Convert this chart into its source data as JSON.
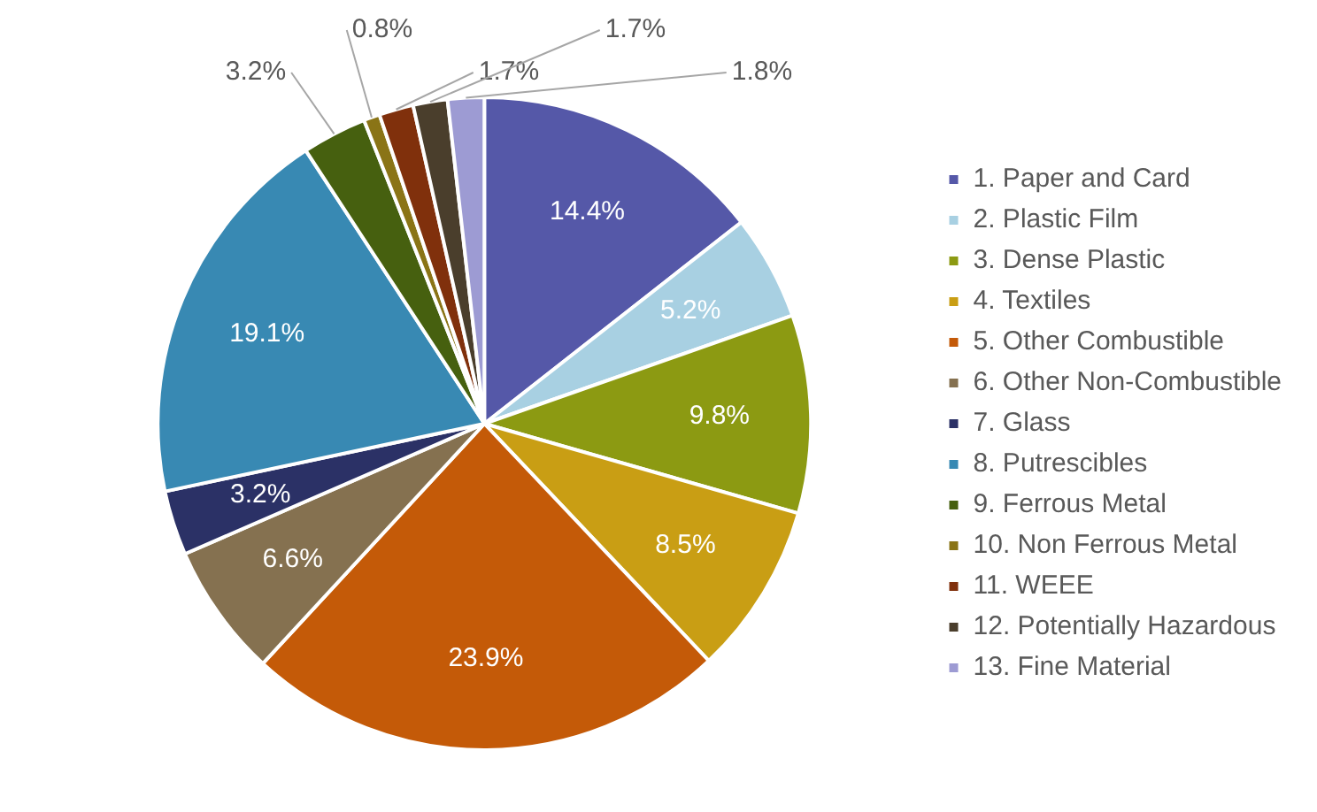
{
  "chart_data": {
    "type": "pie",
    "categories": [
      "1. Paper and Card",
      "2. Plastic Film",
      "3. Dense Plastic",
      "4. Textiles",
      "5. Other Combustible",
      "6. Other Non-Combustible",
      "7. Glass",
      "8. Putrescibles",
      "9. Ferrous Metal",
      "10. Non Ferrous Metal",
      "11. WEEE",
      "12. Potentially Hazardous",
      "13. Fine Material"
    ],
    "values": [
      14.4,
      5.2,
      9.8,
      8.5,
      23.9,
      6.6,
      3.2,
      19.1,
      3.2,
      0.8,
      1.7,
      1.7,
      1.8
    ],
    "colors": [
      "#5558a8",
      "#a8d0e2",
      "#8c9a12",
      "#c99e14",
      "#c45a08",
      "#857150",
      "#2b3166",
      "#3889b3",
      "#46600f",
      "#8a7416",
      "#80300c",
      "#4a3e2c",
      "#9d9bd3"
    ],
    "value_labels": [
      "14.4%",
      "5.2%",
      "9.8%",
      "8.5%",
      "23.9%",
      "6.6%",
      "3.2%",
      "19.1%",
      "3.2%",
      "0.8%",
      "1.7%",
      "1.7%",
      "1.8%"
    ],
    "legend": "right"
  }
}
